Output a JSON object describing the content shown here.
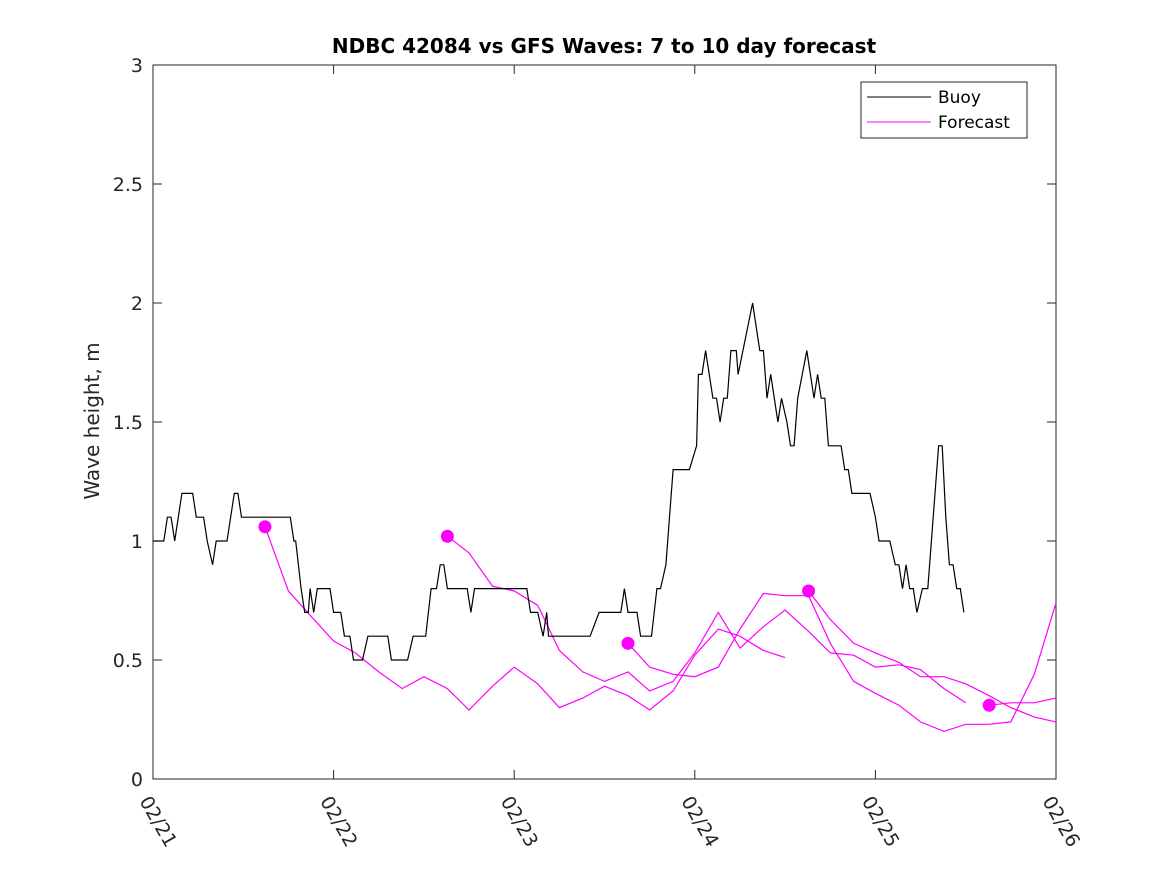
{
  "chart_data": {
    "type": "line",
    "title": "NDBC 42084 vs GFS Waves: 7 to 10 day forecast",
    "xlabel": "",
    "ylabel": "Wave height, m",
    "xlim": [
      0,
      5
    ],
    "ylim": [
      0,
      3
    ],
    "x_ticks": [
      {
        "value": 0,
        "label": "02/21"
      },
      {
        "value": 1,
        "label": "02/22"
      },
      {
        "value": 2,
        "label": "02/23"
      },
      {
        "value": 3,
        "label": "02/24"
      },
      {
        "value": 4,
        "label": "02/25"
      },
      {
        "value": 5,
        "label": "02/26"
      }
    ],
    "y_ticks": [
      {
        "value": 0,
        "label": "0"
      },
      {
        "value": 0.5,
        "label": "0.5"
      },
      {
        "value": 1,
        "label": "1"
      },
      {
        "value": 1.5,
        "label": "1.5"
      },
      {
        "value": 2,
        "label": "2"
      },
      {
        "value": 2.5,
        "label": "2.5"
      },
      {
        "value": 3,
        "label": "3"
      }
    ],
    "legend_position": "top-right",
    "legend": [
      {
        "name": "Buoy",
        "color": "#000000"
      },
      {
        "name": "Forecast",
        "color": "#ff00ff"
      }
    ],
    "buoy": {
      "name": "Buoy",
      "color": "#000000",
      "points": [
        [
          0.0,
          1.0
        ],
        [
          0.06,
          1.0
        ],
        [
          0.08,
          1.1
        ],
        [
          0.1,
          1.1
        ],
        [
          0.12,
          1.0
        ],
        [
          0.16,
          1.2
        ],
        [
          0.22,
          1.2
        ],
        [
          0.24,
          1.1
        ],
        [
          0.28,
          1.1
        ],
        [
          0.3,
          1.0
        ],
        [
          0.33,
          0.9
        ],
        [
          0.35,
          1.0
        ],
        [
          0.41,
          1.0
        ],
        [
          0.45,
          1.2
        ],
        [
          0.47,
          1.2
        ],
        [
          0.49,
          1.1
        ],
        [
          0.76,
          1.1
        ],
        [
          0.78,
          1.0
        ],
        [
          0.79,
          1.0
        ],
        [
          0.82,
          0.8
        ],
        [
          0.84,
          0.7
        ],
        [
          0.86,
          0.7
        ],
        [
          0.87,
          0.8
        ],
        [
          0.89,
          0.7
        ],
        [
          0.91,
          0.8
        ],
        [
          0.98,
          0.8
        ],
        [
          1.0,
          0.7
        ],
        [
          1.04,
          0.7
        ],
        [
          1.06,
          0.6
        ],
        [
          1.09,
          0.6
        ],
        [
          1.11,
          0.5
        ],
        [
          1.16,
          0.5
        ],
        [
          1.19,
          0.6
        ],
        [
          1.3,
          0.6
        ],
        [
          1.32,
          0.5
        ],
        [
          1.41,
          0.5
        ],
        [
          1.44,
          0.6
        ],
        [
          1.51,
          0.6
        ],
        [
          1.54,
          0.8
        ],
        [
          1.57,
          0.8
        ],
        [
          1.59,
          0.9
        ],
        [
          1.61,
          0.9
        ],
        [
          1.63,
          0.8
        ],
        [
          1.74,
          0.8
        ],
        [
          1.76,
          0.7
        ],
        [
          1.78,
          0.8
        ],
        [
          2.07,
          0.8
        ],
        [
          2.09,
          0.7
        ],
        [
          2.13,
          0.7
        ],
        [
          2.16,
          0.6
        ],
        [
          2.18,
          0.7
        ],
        [
          2.19,
          0.6
        ],
        [
          2.42,
          0.6
        ],
        [
          2.47,
          0.7
        ],
        [
          2.59,
          0.7
        ],
        [
          2.61,
          0.8
        ],
        [
          2.63,
          0.7
        ],
        [
          2.68,
          0.7
        ],
        [
          2.7,
          0.6
        ],
        [
          2.76,
          0.6
        ],
        [
          2.79,
          0.8
        ],
        [
          2.81,
          0.8
        ],
        [
          2.84,
          0.9
        ],
        [
          2.88,
          1.3
        ],
        [
          2.97,
          1.3
        ],
        [
          3.01,
          1.4
        ],
        [
          3.02,
          1.7
        ],
        [
          3.04,
          1.7
        ],
        [
          3.06,
          1.8
        ],
        [
          3.1,
          1.6
        ],
        [
          3.12,
          1.6
        ],
        [
          3.14,
          1.5
        ],
        [
          3.16,
          1.6
        ],
        [
          3.18,
          1.6
        ],
        [
          3.2,
          1.8
        ],
        [
          3.23,
          1.8
        ],
        [
          3.24,
          1.7
        ],
        [
          3.32,
          2.0
        ],
        [
          3.36,
          1.8
        ],
        [
          3.38,
          1.8
        ],
        [
          3.4,
          1.6
        ],
        [
          3.42,
          1.7
        ],
        [
          3.46,
          1.5
        ],
        [
          3.48,
          1.6
        ],
        [
          3.51,
          1.5
        ],
        [
          3.53,
          1.4
        ],
        [
          3.55,
          1.4
        ],
        [
          3.57,
          1.6
        ],
        [
          3.62,
          1.8
        ],
        [
          3.66,
          1.6
        ],
        [
          3.68,
          1.7
        ],
        [
          3.7,
          1.6
        ],
        [
          3.72,
          1.6
        ],
        [
          3.74,
          1.4
        ],
        [
          3.81,
          1.4
        ],
        [
          3.83,
          1.3
        ],
        [
          3.85,
          1.3
        ],
        [
          3.87,
          1.2
        ],
        [
          3.97,
          1.2
        ],
        [
          4.0,
          1.1
        ],
        [
          4.02,
          1.0
        ],
        [
          4.08,
          1.0
        ],
        [
          4.11,
          0.9
        ],
        [
          4.13,
          0.9
        ],
        [
          4.15,
          0.8
        ],
        [
          4.17,
          0.9
        ],
        [
          4.19,
          0.8
        ],
        [
          4.21,
          0.8
        ],
        [
          4.23,
          0.7
        ],
        [
          4.26,
          0.8
        ],
        [
          4.29,
          0.8
        ],
        [
          4.33,
          1.2
        ],
        [
          4.35,
          1.4
        ],
        [
          4.37,
          1.4
        ],
        [
          4.39,
          1.1
        ],
        [
          4.41,
          0.9
        ],
        [
          4.43,
          0.9
        ],
        [
          4.45,
          0.8
        ],
        [
          4.47,
          0.8
        ],
        [
          4.49,
          0.7
        ]
      ]
    },
    "forecast": {
      "name": "Forecast",
      "color": "#ff00ff",
      "runs": [
        {
          "start": [
            0.62,
            1.06
          ],
          "points": [
            [
              0.62,
              1.06
            ],
            [
              0.75,
              0.79
            ],
            [
              0.88,
              0.68
            ],
            [
              1.0,
              0.58
            ],
            [
              1.12,
              0.53
            ],
            [
              1.25,
              0.45
            ],
            [
              1.38,
              0.38
            ],
            [
              1.5,
              0.43
            ],
            [
              1.63,
              0.38
            ],
            [
              1.75,
              0.29
            ],
            [
              1.88,
              0.39
            ],
            [
              2.0,
              0.47
            ],
            [
              2.13,
              0.4
            ],
            [
              2.25,
              0.3
            ],
            [
              2.38,
              0.34
            ],
            [
              2.5,
              0.39
            ],
            [
              2.63,
              0.35
            ],
            [
              2.75,
              0.29
            ],
            [
              2.88,
              0.37
            ],
            [
              3.0,
              0.52
            ],
            [
              3.13,
              0.63
            ],
            [
              3.25,
              0.6
            ],
            [
              3.38,
              0.54
            ],
            [
              3.5,
              0.51
            ]
          ]
        },
        {
          "start": [
            1.63,
            1.02
          ],
          "points": [
            [
              1.63,
              1.02
            ],
            [
              1.75,
              0.95
            ],
            [
              1.88,
              0.81
            ],
            [
              2.0,
              0.79
            ],
            [
              2.13,
              0.73
            ],
            [
              2.25,
              0.54
            ],
            [
              2.38,
              0.45
            ],
            [
              2.5,
              0.41
            ],
            [
              2.63,
              0.45
            ],
            [
              2.75,
              0.37
            ],
            [
              2.88,
              0.41
            ],
            [
              3.0,
              0.53
            ],
            [
              3.13,
              0.7
            ],
            [
              3.25,
              0.55
            ],
            [
              3.38,
              0.64
            ],
            [
              3.5,
              0.71
            ],
            [
              3.63,
              0.62
            ],
            [
              3.75,
              0.53
            ],
            [
              3.88,
              0.52
            ],
            [
              4.0,
              0.47
            ],
            [
              4.13,
              0.48
            ],
            [
              4.25,
              0.46
            ],
            [
              4.38,
              0.38
            ],
            [
              4.5,
              0.32
            ]
          ]
        },
        {
          "start": [
            2.63,
            0.57
          ],
          "points": [
            [
              2.63,
              0.57
            ],
            [
              2.75,
              0.47
            ],
            [
              2.88,
              0.44
            ],
            [
              3.0,
              0.43
            ],
            [
              3.13,
              0.47
            ],
            [
              3.25,
              0.63
            ],
            [
              3.38,
              0.78
            ],
            [
              3.5,
              0.77
            ],
            [
              3.63,
              0.77
            ],
            [
              3.75,
              0.57
            ],
            [
              3.88,
              0.41
            ],
            [
              4.0,
              0.36
            ],
            [
              4.13,
              0.31
            ],
            [
              4.25,
              0.24
            ],
            [
              4.38,
              0.2
            ],
            [
              4.5,
              0.23
            ],
            [
              4.63,
              0.23
            ],
            [
              4.75,
              0.24
            ],
            [
              4.88,
              0.44
            ],
            [
              5.0,
              0.74
            ]
          ]
        },
        {
          "start": [
            3.63,
            0.79
          ],
          "points": [
            [
              3.63,
              0.79
            ],
            [
              3.75,
              0.67
            ],
            [
              3.88,
              0.57
            ],
            [
              4.0,
              0.53
            ],
            [
              4.13,
              0.49
            ],
            [
              4.25,
              0.43
            ],
            [
              4.38,
              0.43
            ],
            [
              4.5,
              0.4
            ],
            [
              4.63,
              0.35
            ],
            [
              4.75,
              0.3
            ],
            [
              4.88,
              0.26
            ],
            [
              5.0,
              0.24
            ]
          ]
        },
        {
          "start": [
            4.63,
            0.31
          ],
          "points": [
            [
              4.63,
              0.31
            ],
            [
              4.75,
              0.32
            ],
            [
              4.88,
              0.32
            ],
            [
              5.0,
              0.34
            ]
          ]
        }
      ]
    }
  }
}
